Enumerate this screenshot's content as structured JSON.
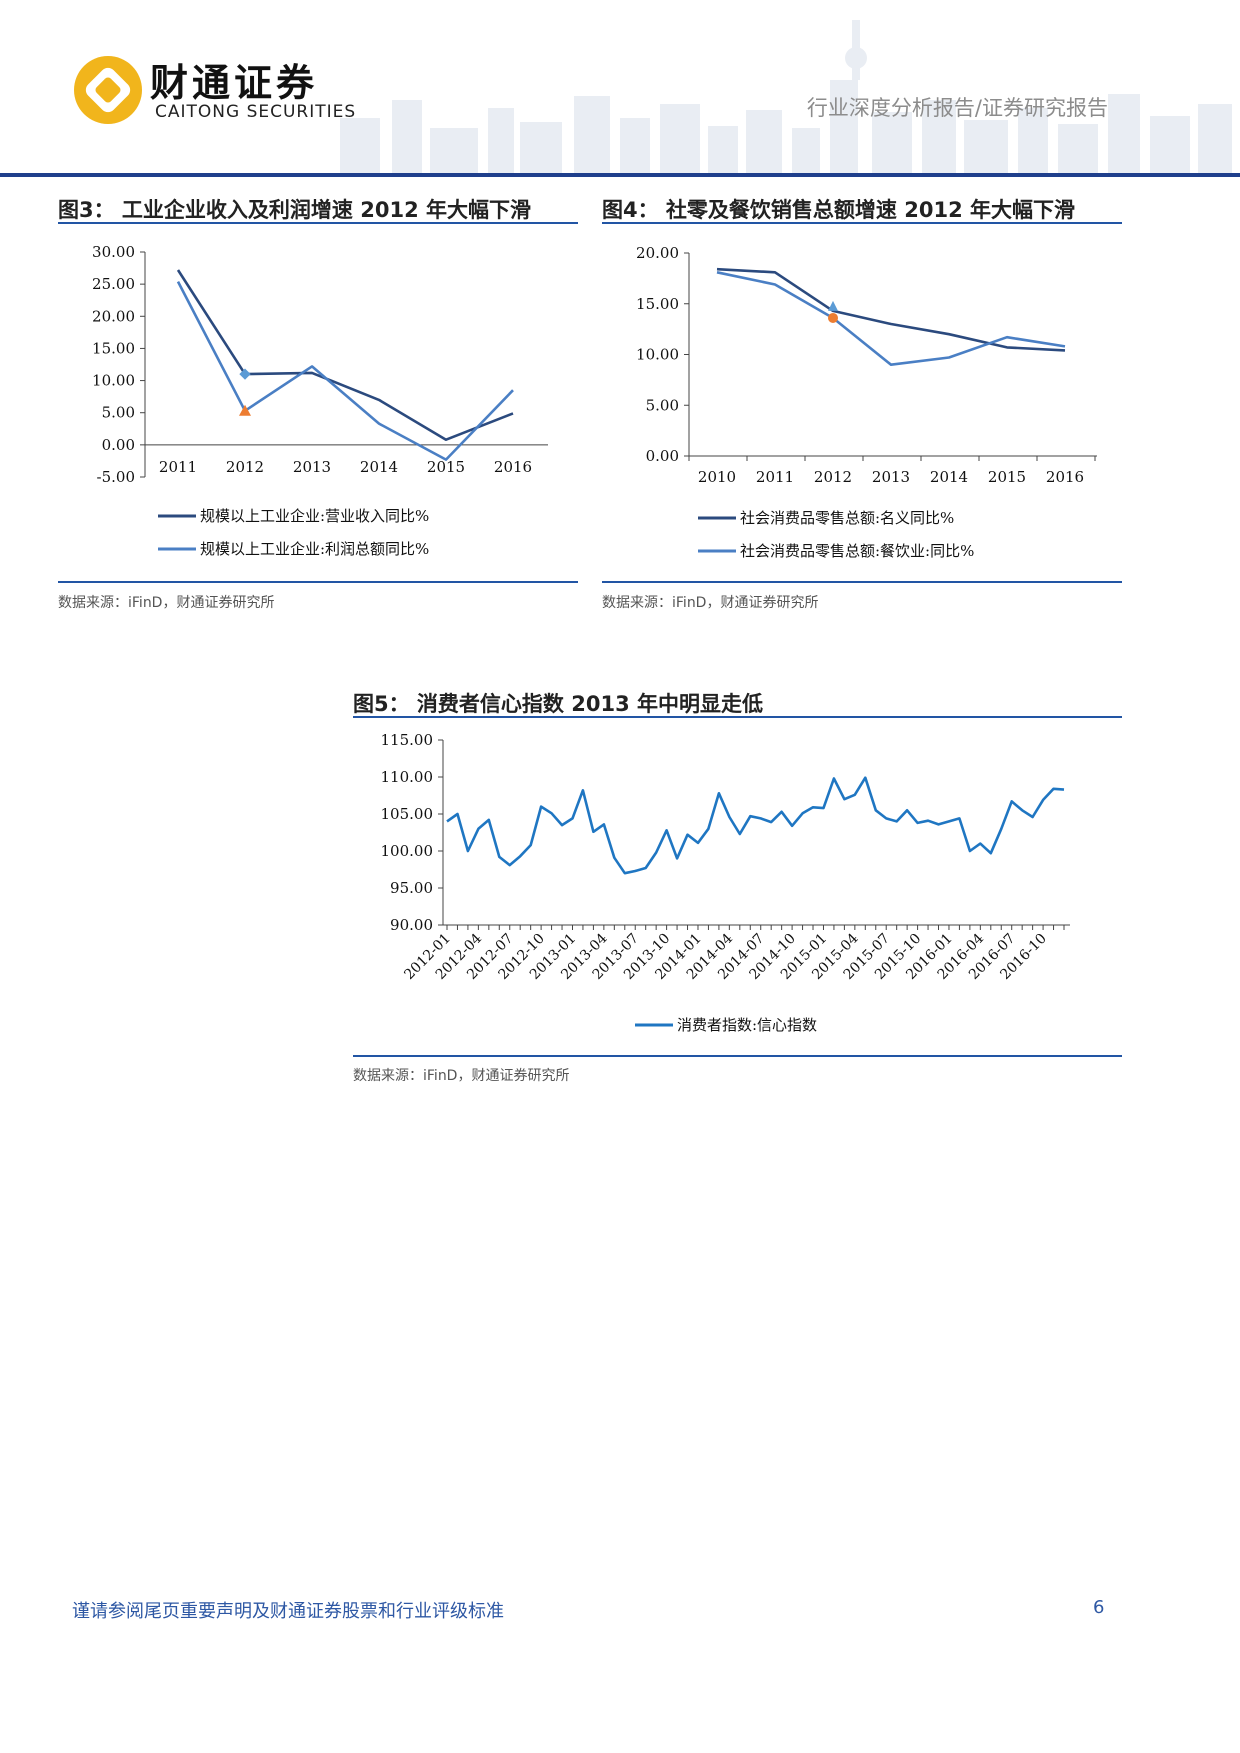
{
  "header": {
    "logo_cn": "财通证券",
    "logo_en": "CAITONG SECURITIES",
    "doc_type": "行业深度分析报告/证券研究报告"
  },
  "figures": [
    {
      "title": "图3： 工业企业收入及利润增速 2012 年大幅下滑",
      "source": "数据来源：iFinD，财通证券研究所"
    },
    {
      "title": "图4： 社零及餐饮销售总额增速 2012 年大幅下滑",
      "source": "数据来源：iFinD，财通证券研究所"
    },
    {
      "title": "图5： 消费者信心指数 2013 年中明显走低",
      "source": "数据来源：iFinD，财通证券研究所"
    }
  ],
  "chart_data": [
    {
      "type": "line",
      "x": [
        "2011",
        "2012",
        "2013",
        "2014",
        "2015",
        "2016"
      ],
      "ylim": [
        -5,
        30
      ],
      "yticks": [
        "30.00",
        "25.00",
        "20.00",
        "15.00",
        "10.00",
        "5.00",
        "0.00",
        "-5.00"
      ],
      "series": [
        {
          "name": "规模以上工业企业:营业收入同比%",
          "color": "#2b4a7e",
          "values": [
            27.2,
            11.0,
            11.2,
            7.0,
            0.8,
            4.9
          ]
        },
        {
          "name": "规模以上工业企业:利润总额同比%",
          "color": "#4a7fc4",
          "values": [
            25.4,
            5.3,
            12.2,
            3.3,
            -2.3,
            8.5
          ]
        }
      ],
      "legend": "bottom"
    },
    {
      "type": "line",
      "x": [
        "2010",
        "2011",
        "2012",
        "2013",
        "2014",
        "2015",
        "2016"
      ],
      "ylim": [
        0,
        20
      ],
      "yticks": [
        "20.00",
        "15.00",
        "10.00",
        "5.00",
        "0.00"
      ],
      "series": [
        {
          "name": "社会消费品零售总额:名义同比%",
          "color": "#2b4a7e",
          "values": [
            18.4,
            18.1,
            14.3,
            13.0,
            12.0,
            10.7,
            10.4
          ]
        },
        {
          "name": "社会消费品零售总额:餐饮业:同比%",
          "color": "#4a7fc4",
          "values": [
            18.1,
            16.9,
            13.6,
            9.0,
            9.7,
            11.7,
            10.8
          ]
        }
      ],
      "legend": "bottom"
    },
    {
      "type": "line",
      "x_labels": [
        "2012-01",
        "2012-04",
        "2012-07",
        "2012-10",
        "2013-01",
        "2013-04",
        "2013-07",
        "2013-10",
        "2014-01",
        "2014-04",
        "2014-07",
        "2014-10",
        "2015-01",
        "2015-04",
        "2015-07",
        "2015-10",
        "2016-01",
        "2016-04",
        "2016-07",
        "2016-10"
      ],
      "ylim": [
        90,
        115
      ],
      "yticks": [
        "115.00",
        "110.00",
        "105.00",
        "100.00",
        "95.00",
        "90.00"
      ],
      "series": [
        {
          "name": "消费者指数:信心指数",
          "color": "#1f76c2",
          "values": [
            104.0,
            105.0,
            100.0,
            103.0,
            104.2,
            99.2,
            98.1,
            99.3,
            100.8,
            106.0,
            105.1,
            103.5,
            104.4,
            108.2,
            102.6,
            103.6,
            99.1,
            97.0,
            97.3,
            97.7,
            99.8,
            102.8,
            99.0,
            102.2,
            101.1,
            103.0,
            107.8,
            104.6,
            102.3,
            104.7,
            104.4,
            103.9,
            105.3,
            103.4,
            105.1,
            105.9,
            105.8,
            109.8,
            107.0,
            107.6,
            109.9,
            105.5,
            104.4,
            104.0,
            105.5,
            103.8,
            104.1,
            103.6,
            104.0,
            104.4,
            100.0,
            101.0,
            99.7,
            103.0,
            106.7,
            105.5,
            104.6,
            106.9,
            108.4,
            108.3
          ]
        }
      ],
      "legend": "bottom"
    }
  ]
}
